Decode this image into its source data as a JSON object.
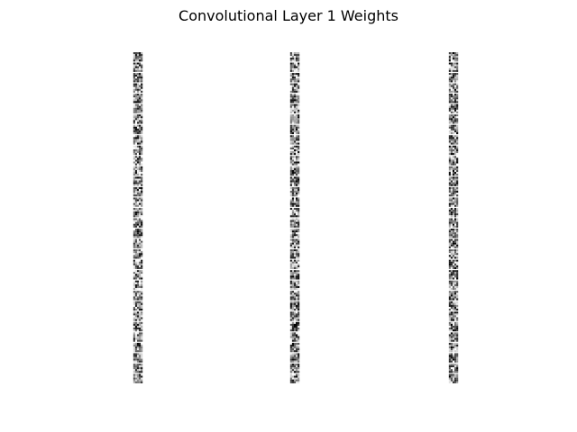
{
  "chart_data": {
    "type": "heatmap",
    "title": "Convolutional Layer 1 Weights",
    "layout": {
      "columns": 3,
      "rows": 32
    },
    "kernel_size": [
      5,
      5
    ],
    "colormap": "gray",
    "axes_visible": false,
    "columns": [
      {
        "seed": 11
      },
      {
        "seed": 29
      },
      {
        "seed": 47
      }
    ]
  }
}
